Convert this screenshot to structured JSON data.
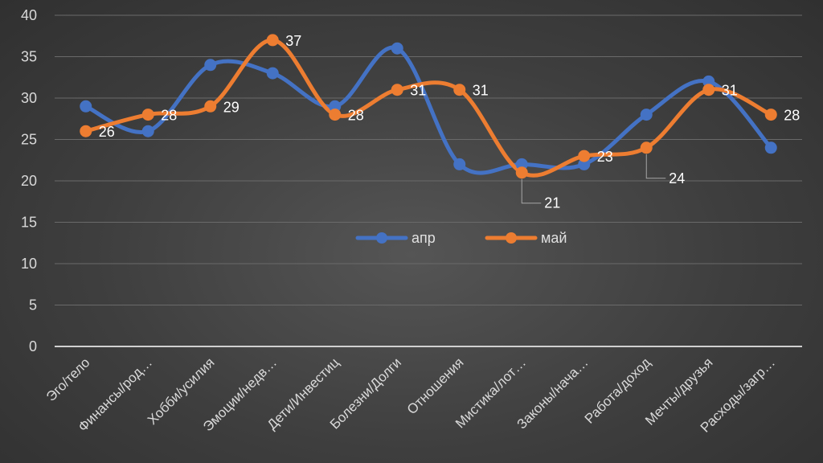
{
  "chart_data": {
    "type": "line",
    "title": "",
    "xlabel": "",
    "ylabel": "",
    "ylim": [
      0,
      40
    ],
    "yticks": [
      "0",
      "5",
      "10",
      "15",
      "20",
      "25",
      "30",
      "35",
      "40"
    ],
    "categories": [
      "Эго/тело",
      "Финансы/род…",
      "Хобби/усилия",
      "Эмоции/недв…",
      "Дети/Инвестиц",
      "Болезни/Долги",
      "Отношения",
      "Мистика/лот…",
      "Законы/нача…",
      "Работа/доход",
      "Мечты/друзья",
      "Расходы/загр…"
    ],
    "series": [
      {
        "name": "апр",
        "color": "#4472c4",
        "values": [
          29,
          26,
          34,
          33,
          29,
          36,
          22,
          22,
          22,
          28,
          32,
          24
        ]
      },
      {
        "name": "май",
        "color": "#ed7d31",
        "values": [
          26,
          28,
          29,
          37,
          28,
          31,
          31,
          21,
          23,
          24,
          31,
          28
        ]
      }
    ],
    "data_labels": [
      "26",
      "28",
      "29",
      "37",
      "28",
      "31",
      "31",
      "21",
      "23",
      "24",
      "31",
      "28"
    ],
    "legend_position": "center"
  }
}
